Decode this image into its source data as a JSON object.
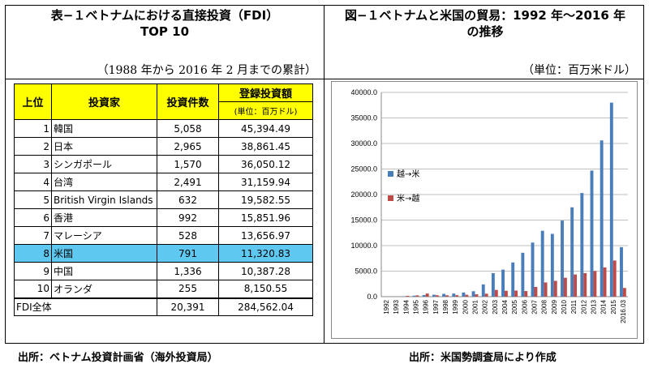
{
  "left": {
    "title_line1": "表−１ベトナムにおける直接投資（FDI）",
    "title_line2": "TOP 10",
    "subtitle": "（1988 年から 2016 年 2 月までの累計）",
    "table": {
      "headers": {
        "rank": "上位",
        "investor": "投資家",
        "count": "投資件数",
        "amount": "登録投資額",
        "amount_unit": "(単位：百万ドル)"
      },
      "rows": [
        {
          "rank": "1",
          "name": "韓国",
          "count": "5,058",
          "amount": "45,394.49"
        },
        {
          "rank": "2",
          "name": "日本",
          "count": "2,965",
          "amount": "38,861.45"
        },
        {
          "rank": "3",
          "name": "シンガポール",
          "count": "1,570",
          "amount": "36,050.12"
        },
        {
          "rank": "4",
          "name": "台湾",
          "count": "2,491",
          "amount": "31,159.94"
        },
        {
          "rank": "5",
          "name": "British Virgin Islands",
          "count": "632",
          "amount": "19,582.55"
        },
        {
          "rank": "6",
          "name": "香港",
          "count": "992",
          "amount": "15,851.96"
        },
        {
          "rank": "7",
          "name": "マレーシア",
          "count": "528",
          "amount": "13,656.97"
        },
        {
          "rank": "8",
          "name": "米国",
          "count": "791",
          "amount": "11,320.83"
        },
        {
          "rank": "9",
          "name": "中国",
          "count": "1,336",
          "amount": "10,387.28"
        },
        {
          "rank": "10",
          "name": "オランダ",
          "count": "255",
          "amount": "8,150.55"
        }
      ],
      "total": {
        "name": "FDI全体",
        "count": "20,391",
        "amount": "284,562.04"
      }
    },
    "source": "出所：ベトナム投資計画省（海外投資局）"
  },
  "right": {
    "title_line1": "図−１ベトナムと米国の貿易：1992 年〜2016 年",
    "title_line2": "の推移",
    "subtitle": "（単位：百万米ドル）",
    "source": "出所：米国勢調査局により作成"
  },
  "colors": {
    "header_yellow": "#ffff00",
    "highlight_blue": "#5fc8f0",
    "series1": "#4a7ebb",
    "series2": "#be4b48"
  },
  "chart_data": {
    "type": "bar",
    "categories": [
      "1992",
      "1993",
      "1994",
      "1995",
      "1996",
      "1997",
      "1998",
      "1999",
      "2000",
      "2001",
      "2002",
      "2003",
      "2004",
      "2005",
      "2006",
      "2007",
      "2008",
      "2009",
      "2010",
      "2011",
      "2012",
      "2013",
      "2014",
      "2015",
      "2016.03"
    ],
    "series": [
      {
        "name": "越→米",
        "color": "#4a7ebb",
        "values": [
          0,
          0,
          50,
          200,
          320,
          390,
          550,
          610,
          820,
          1060,
          2400,
          4600,
          5300,
          6700,
          8600,
          10600,
          12900,
          12300,
          14900,
          17500,
          20300,
          24700,
          30600,
          38000,
          9700
        ]
      },
      {
        "name": "米→越",
        "color": "#be4b48",
        "values": [
          0,
          0,
          170,
          250,
          620,
          280,
          270,
          290,
          370,
          460,
          580,
          1320,
          1150,
          1190,
          1100,
          1900,
          2790,
          3100,
          3700,
          4340,
          4620,
          5020,
          5730,
          7080,
          1700
        ]
      }
    ],
    "yticks": [
      "0.0",
      "5000.0",
      "10000.0",
      "15000.0",
      "20000.0",
      "25000.0",
      "30000.0",
      "35000.0",
      "40000.0"
    ],
    "ylim": [
      0,
      40000
    ],
    "grid": true,
    "legend_position": "left"
  }
}
